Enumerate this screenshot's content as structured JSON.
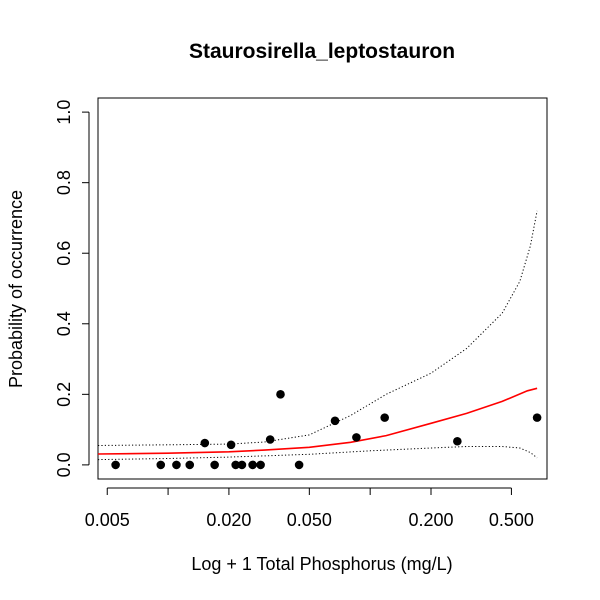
{
  "chart_data": {
    "type": "scatter",
    "title": "Staurosirella_leptostauron",
    "xlabel": "Log + 1 Total Phosphorus (mg/L)",
    "ylabel": "Probability of occurrence",
    "x_scale": "log",
    "xlim": [
      0.0045,
      0.75
    ],
    "ylim": [
      -0.04,
      1.04
    ],
    "x_ticks": [
      {
        "value": 0.005,
        "label": "0.005"
      },
      {
        "value": 0.02,
        "label": "0.020"
      },
      {
        "value": 0.05,
        "label": "0.050"
      },
      {
        "value": 0.2,
        "label": "0.200"
      },
      {
        "value": 0.5,
        "label": "0.500"
      }
    ],
    "x_minor_ticks": [
      0.01,
      0.1
    ],
    "y_ticks": [
      {
        "value": 0.0,
        "label": "0.0"
      },
      {
        "value": 0.2,
        "label": "0.2"
      },
      {
        "value": 0.4,
        "label": "0.4"
      },
      {
        "value": 0.6,
        "label": "0.6"
      },
      {
        "value": 0.8,
        "label": "0.8"
      },
      {
        "value": 1.0,
        "label": "1.0"
      }
    ],
    "grid": false,
    "points": [
      {
        "x": 0.0055,
        "y": 0.0
      },
      {
        "x": 0.0092,
        "y": 0.0
      },
      {
        "x": 0.011,
        "y": 0.0
      },
      {
        "x": 0.0128,
        "y": 0.0
      },
      {
        "x": 0.0152,
        "y": 0.062
      },
      {
        "x": 0.017,
        "y": 0.0
      },
      {
        "x": 0.0205,
        "y": 0.057
      },
      {
        "x": 0.0216,
        "y": 0.0
      },
      {
        "x": 0.0232,
        "y": 0.0
      },
      {
        "x": 0.0262,
        "y": 0.0
      },
      {
        "x": 0.0287,
        "y": 0.0
      },
      {
        "x": 0.032,
        "y": 0.072
      },
      {
        "x": 0.036,
        "y": 0.2
      },
      {
        "x": 0.0445,
        "y": 0.0
      },
      {
        "x": 0.067,
        "y": 0.125
      },
      {
        "x": 0.0855,
        "y": 0.078
      },
      {
        "x": 0.118,
        "y": 0.134
      },
      {
        "x": 0.27,
        "y": 0.067
      },
      {
        "x": 0.67,
        "y": 0.134
      }
    ],
    "series": [
      {
        "kind": "fit",
        "color": "#ff0000",
        "style": "solid",
        "x": [
          0.0045,
          0.01,
          0.02,
          0.03,
          0.05,
          0.08,
          0.12,
          0.2,
          0.3,
          0.45,
          0.6,
          0.67
        ],
        "y": [
          0.031,
          0.033,
          0.037,
          0.042,
          0.05,
          0.064,
          0.083,
          0.118,
          0.146,
          0.18,
          0.21,
          0.217
        ]
      },
      {
        "kind": "upper-ci",
        "color": "#000000",
        "style": "dotted",
        "x": [
          0.0045,
          0.01,
          0.02,
          0.03,
          0.05,
          0.08,
          0.12,
          0.2,
          0.3,
          0.45,
          0.55,
          0.62,
          0.67
        ],
        "y": [
          0.055,
          0.057,
          0.059,
          0.065,
          0.085,
          0.14,
          0.2,
          0.26,
          0.33,
          0.43,
          0.52,
          0.62,
          0.72
        ]
      },
      {
        "kind": "lower-ci",
        "color": "#000000",
        "style": "dotted",
        "x": [
          0.0045,
          0.01,
          0.02,
          0.05,
          0.1,
          0.2,
          0.3,
          0.45,
          0.55,
          0.62,
          0.67
        ],
        "y": [
          0.015,
          0.018,
          0.022,
          0.03,
          0.04,
          0.048,
          0.052,
          0.052,
          0.048,
          0.035,
          0.02
        ]
      }
    ]
  }
}
